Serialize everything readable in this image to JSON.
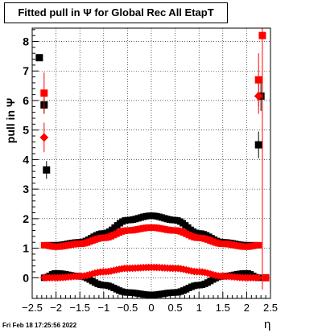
{
  "title": "Fitted pull in  Ψ  for Global Rec All EtapT",
  "ylabel": "pull in  Ψ",
  "xlabel": "η",
  "footer": "Fri Feb 18 17:25:56 2022",
  "colors": {
    "black": "#000000",
    "red": "#ff0000"
  },
  "chart_data": {
    "type": "scatter",
    "xlim": [
      -2.5,
      2.5
    ],
    "ylim": [
      -0.7,
      8.45
    ],
    "grid": true,
    "xticks": [
      -2.5,
      -2,
      -1.5,
      -1,
      -0.5,
      0,
      0.5,
      1,
      1.5,
      2,
      2.5
    ],
    "xtick_labels": [
      "−2.5",
      "−2",
      "−1.5",
      "−1",
      "−0.5",
      "0",
      "0.5",
      "1",
      "1.5",
      "2",
      "2.5"
    ],
    "yticks": [
      0,
      1,
      2,
      3,
      4,
      5,
      6,
      7,
      8
    ],
    "ytick_labels": [
      "0",
      "1",
      "2",
      "3",
      "4",
      "5",
      "6",
      "7",
      "8"
    ],
    "series": [
      {
        "color": "#000000",
        "marker": "square",
        "style": "band",
        "x": [
          -2.2,
          -2.0,
          -1.5,
          -1.0,
          -0.5,
          0,
          0.5,
          1.0,
          1.5,
          2.0,
          2.2
        ],
        "y": [
          1.1,
          1.1,
          1.2,
          1.5,
          1.95,
          2.1,
          1.95,
          1.5,
          1.2,
          1.1,
          1.1
        ]
      },
      {
        "color": "#000000",
        "marker": "square",
        "style": "band",
        "x": [
          -2.25,
          -2.0,
          -1.5,
          -1.0,
          -0.5,
          0,
          0.5,
          1.0,
          1.5,
          2.0,
          2.25
        ],
        "y": [
          0.0,
          0.15,
          0.05,
          -0.25,
          -0.5,
          -0.58,
          -0.5,
          -0.25,
          0.05,
          0.15,
          0.0
        ]
      },
      {
        "color": "#ff0000",
        "marker": "square",
        "style": "band",
        "x": [
          -2.25,
          -2.0,
          -1.5,
          -1.0,
          -0.5,
          0,
          0.5,
          1.0,
          1.5,
          2.0,
          2.25
        ],
        "y": [
          1.1,
          1.05,
          1.15,
          1.35,
          1.6,
          1.7,
          1.6,
          1.35,
          1.15,
          1.05,
          1.1
        ]
      },
      {
        "color": "#ff0000",
        "marker": "diamond",
        "style": "band",
        "x": [
          -2.25,
          -2.0,
          -1.5,
          -1.0,
          -0.5,
          0,
          0.5,
          1.0,
          1.5,
          2.0,
          2.25
        ],
        "y": [
          0.0,
          0.0,
          0.05,
          0.2,
          0.32,
          0.35,
          0.32,
          0.2,
          0.05,
          0.0,
          0.0
        ]
      },
      {
        "color": "#000000",
        "marker": "square",
        "style": "points",
        "x": [
          -2.35,
          -2.25,
          -2.2,
          2.25,
          2.3
        ],
        "y": [
          7.45,
          5.85,
          3.65,
          4.5,
          6.15
        ],
        "err": [
          0,
          0.3,
          0.3,
          0.45,
          0.5
        ]
      },
      {
        "color": "#ff0000",
        "marker": "square",
        "style": "points",
        "x": [
          -2.25,
          2.25,
          2.33,
          2.4
        ],
        "y": [
          6.25,
          6.7,
          8.2,
          0.0
        ],
        "err": [
          0.7,
          0.9,
          8.6,
          0
        ]
      },
      {
        "color": "#ff0000",
        "marker": "diamond",
        "style": "points",
        "x": [
          -2.25,
          2.25
        ],
        "y": [
          4.75,
          6.15
        ],
        "err": [
          0.5,
          0.6
        ]
      }
    ]
  }
}
